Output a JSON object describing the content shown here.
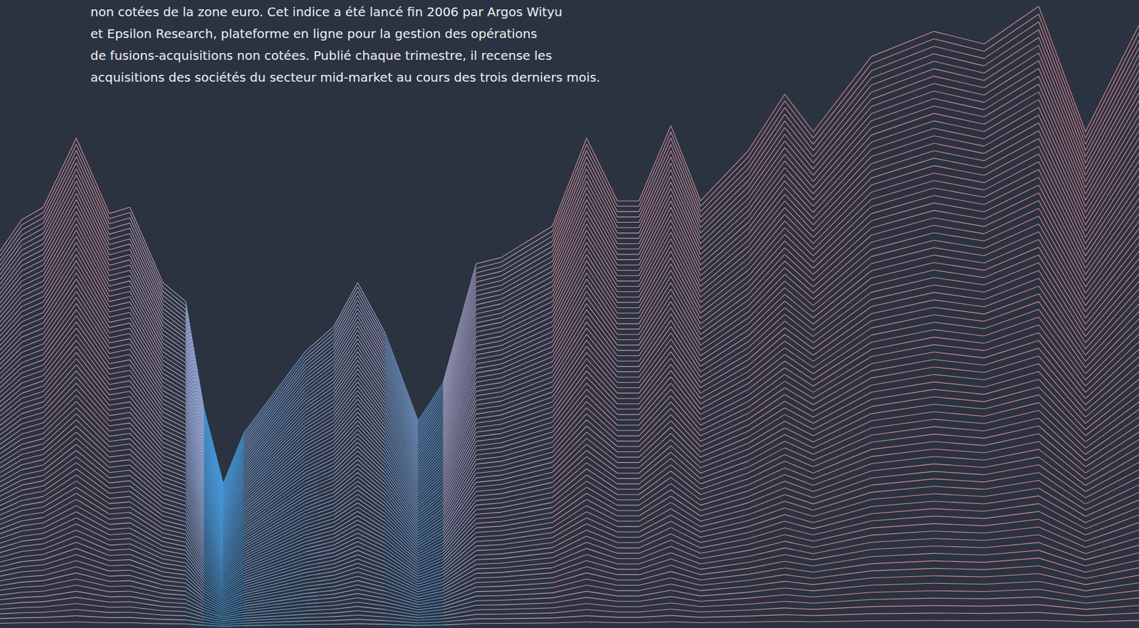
{
  "chart_data": {
    "type": "ridgeline",
    "text": [
      "non cotées de la zone euro. Cet indice a été lancé fin 2006 par Argos Wityu",
      "et Epsilon Research, plateforme en ligne pour la gestion des opérations",
      "de fusions-acquisitions non cotées. Publié chaque trimestre, il recense les",
      "acquisitions des sociétés du secteur mid-market au cours des trois derniers mois."
    ],
    "x": [
      0,
      1.9,
      3.8,
      6.7,
      9.6,
      11.4,
      14.3,
      16.3,
      17.9,
      19.6,
      21.4,
      26.8,
      29.3,
      31.4,
      33.8,
      36.7,
      38.9,
      41.8,
      44.0,
      48.5,
      51.5,
      54.2,
      56.1,
      58.9,
      61.5,
      65.7,
      68.9,
      71.4,
      76.5,
      82.0,
      86.4,
      91.2,
      95.3,
      100
    ],
    "values": [
      60,
      65,
      67,
      78,
      66,
      67,
      55,
      52,
      35,
      23,
      31,
      44,
      48,
      55,
      47,
      33,
      39,
      58,
      59,
      64,
      78,
      68,
      68,
      80,
      68,
      76,
      85,
      79,
      91,
      95,
      93,
      99,
      79,
      96
    ],
    "xlim": [
      0,
      100
    ],
    "ylim": [
      0,
      100
    ],
    "grid": false,
    "tick_labels": false
  }
}
